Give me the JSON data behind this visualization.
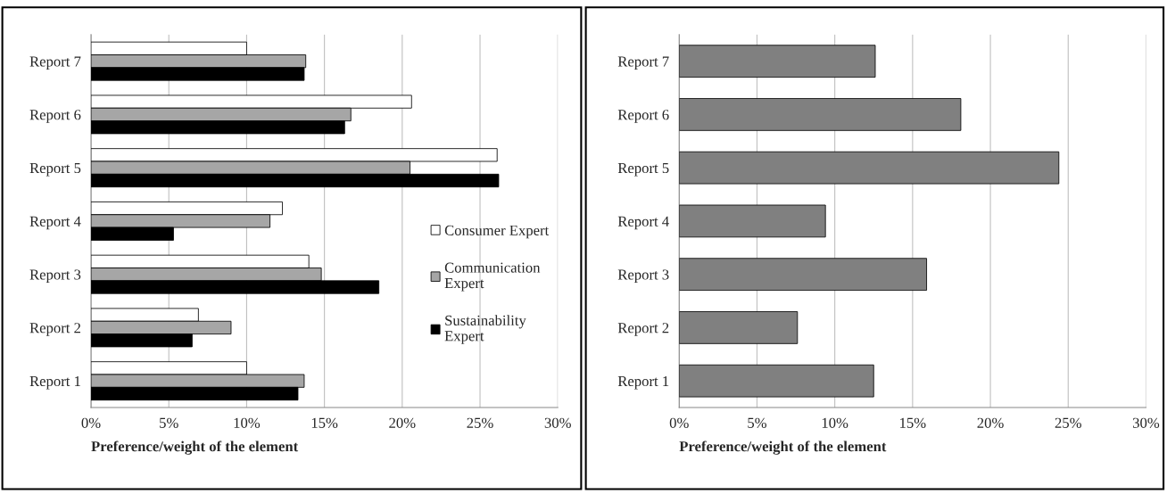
{
  "chart_data": [
    {
      "type": "bar",
      "orientation": "horizontal",
      "categories": [
        "Report 7",
        "Report 6",
        "Report 5",
        "Report 4",
        "Report 3",
        "Report 2",
        "Report 1"
      ],
      "series": [
        {
          "name": "Consumer Expert",
          "color": "#ffffff",
          "values": [
            10.0,
            20.6,
            26.1,
            12.3,
            14.0,
            6.9,
            10.0
          ]
        },
        {
          "name": "Communication Expert",
          "color": "#a6a6a6",
          "values": [
            13.8,
            16.7,
            20.5,
            11.5,
            14.8,
            9.0,
            13.7
          ]
        },
        {
          "name": "Sustainability Expert",
          "color": "#000000",
          "values": [
            13.7,
            16.3,
            26.2,
            5.3,
            18.5,
            6.5,
            13.3
          ]
        }
      ],
      "xlabel": "Preference/weight of the element",
      "xlim": [
        0,
        30
      ],
      "xticks": [
        {
          "value": 0,
          "label": "0%"
        },
        {
          "value": 5,
          "label": "5%"
        },
        {
          "value": 10,
          "label": "10%"
        },
        {
          "value": 15,
          "label": "15%"
        },
        {
          "value": 20,
          "label": "20%"
        },
        {
          "value": 25,
          "label": "25%"
        },
        {
          "value": 30,
          "label": "30%"
        }
      ],
      "grid": "x",
      "legend": "right"
    },
    {
      "type": "bar",
      "orientation": "horizontal",
      "categories": [
        "Report 7",
        "Report 6",
        "Report 5",
        "Report 4",
        "Report 3",
        "Report 2",
        "Report 1"
      ],
      "series": [
        {
          "color": "#808080",
          "values": [
            12.6,
            18.1,
            24.4,
            9.4,
            15.9,
            7.6,
            12.5
          ]
        }
      ],
      "xlabel": "Preference/weight of the element",
      "xlim": [
        0,
        30
      ],
      "xticks": [
        {
          "value": 0,
          "label": "0%"
        },
        {
          "value": 5,
          "label": "5%"
        },
        {
          "value": 10,
          "label": "10%"
        },
        {
          "value": 15,
          "label": "15%"
        },
        {
          "value": 20,
          "label": "20%"
        },
        {
          "value": 25,
          "label": "25%"
        },
        {
          "value": 30,
          "label": "30%"
        }
      ],
      "grid": "x"
    }
  ]
}
